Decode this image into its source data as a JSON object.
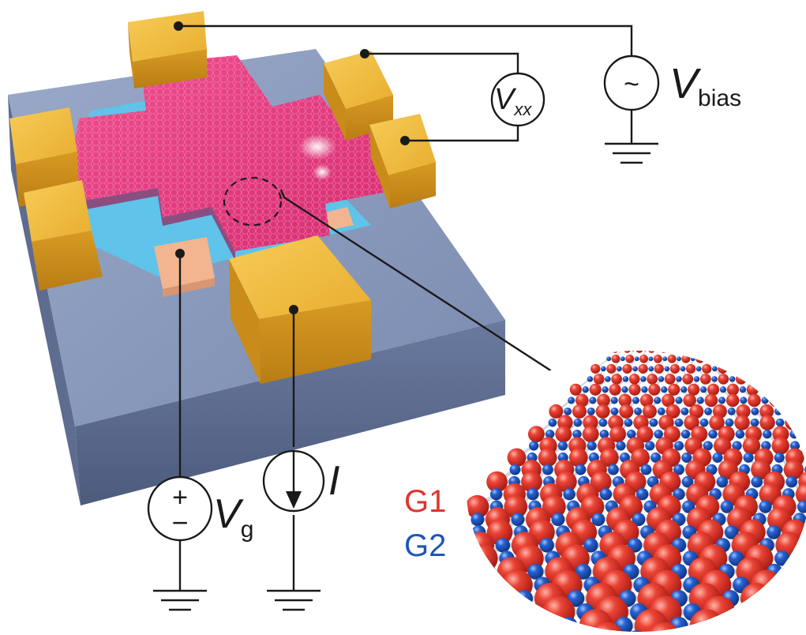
{
  "figure": {
    "labels": {
      "vbias": {
        "main": "V",
        "sub": "bias"
      },
      "vxx": {
        "main": "V",
        "sub": "xx"
      },
      "vg": {
        "main": "V",
        "sub": "g"
      },
      "current": "I",
      "ac_symbol": "~",
      "plus": "+",
      "minus": "−"
    },
    "lattice_legend": [
      {
        "label": "G1",
        "color": "#e0342c"
      },
      {
        "label": "G2",
        "color": "#1e55b8"
      }
    ],
    "colors": {
      "contact_gold": "#e9b23a",
      "channel_pink": "#e6357e",
      "substrate": "#7d8fb2",
      "insulator_blue": "#5fc3ea",
      "gate_peach": "#f2b58f"
    }
  }
}
